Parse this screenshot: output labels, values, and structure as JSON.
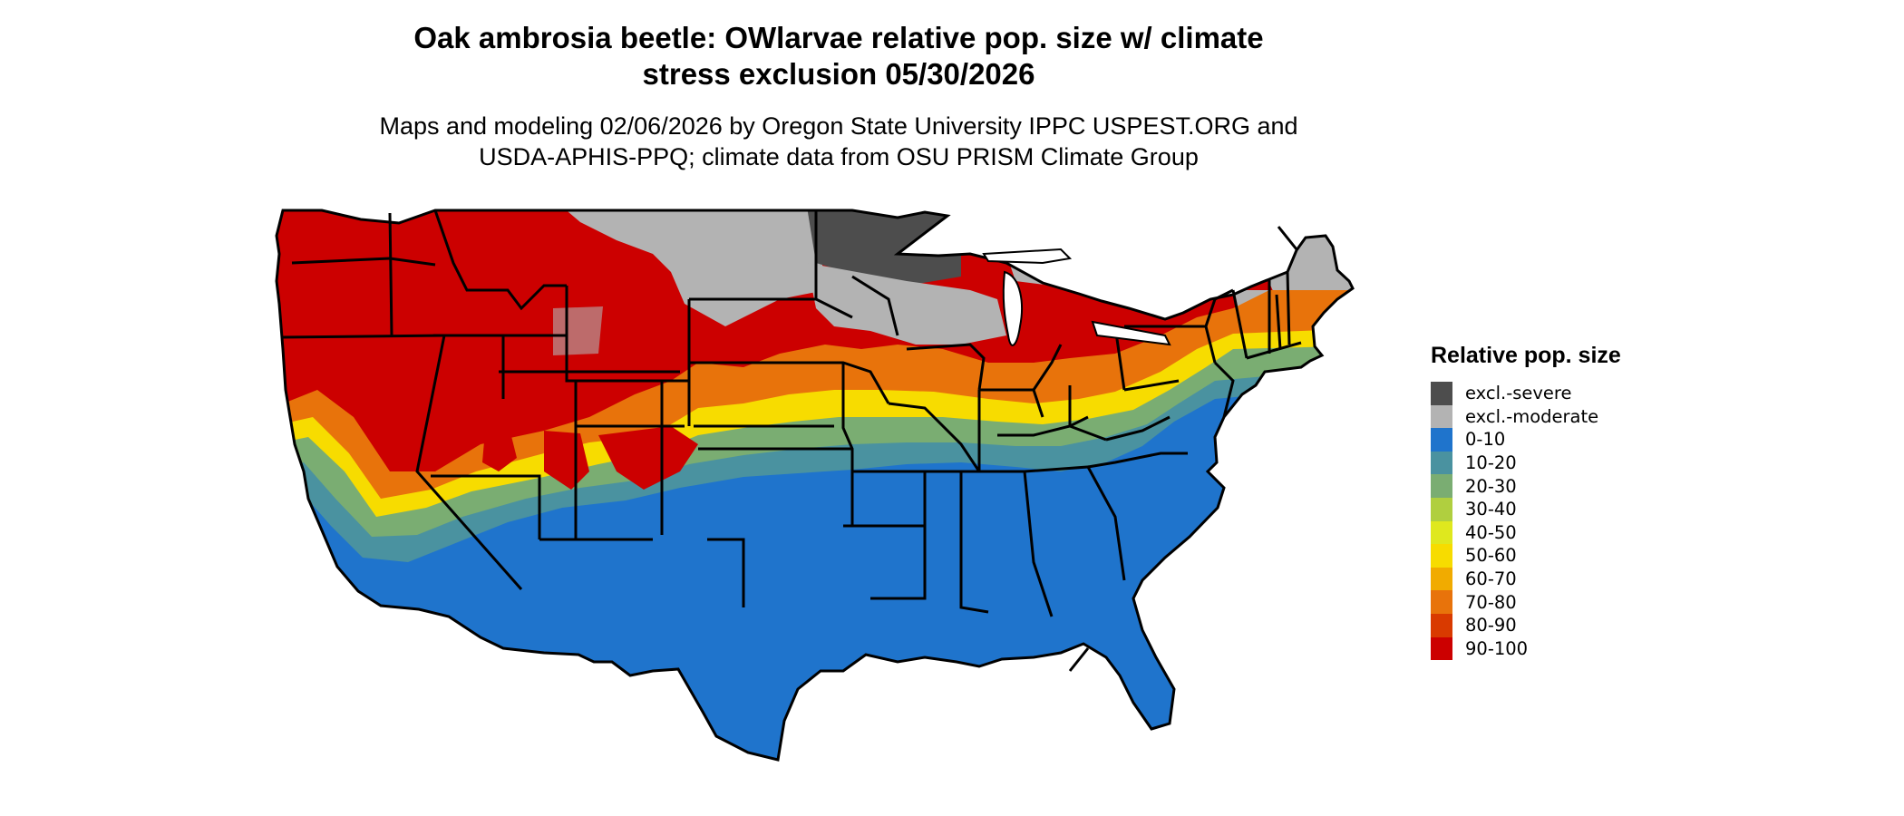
{
  "title": {
    "line1": "Oak ambrosia beetle: OWlarvae relative pop. size w/ climate",
    "line2": "stress exclusion 05/30/2026"
  },
  "subtitle": {
    "line1": "Maps and modeling 02/06/2026 by Oregon State University IPPC USPEST.ORG and",
    "line2": "USDA-APHIS-PPQ; climate data from OSU PRISM Climate Group"
  },
  "legend": {
    "title": "Relative pop. size",
    "items": [
      {
        "label": "excl.-severe",
        "color": "#4d4d4d"
      },
      {
        "label": "excl.-moderate",
        "color": "#b3b3b3"
      },
      {
        "label": "0-10",
        "color": "#1f74cc"
      },
      {
        "label": "10-20",
        "color": "#4a92a0"
      },
      {
        "label": "20-30",
        "color": "#7aad72"
      },
      {
        "label": "30-40",
        "color": "#b0cf3f"
      },
      {
        "label": "40-50",
        "color": "#dfe81e"
      },
      {
        "label": "50-60",
        "color": "#f7dc00"
      },
      {
        "label": "60-70",
        "color": "#f1ab00"
      },
      {
        "label": "70-80",
        "color": "#e8730b"
      },
      {
        "label": "80-90",
        "color": "#d93a00"
      },
      {
        "label": "90-100",
        "color": "#cc0000"
      }
    ]
  }
}
